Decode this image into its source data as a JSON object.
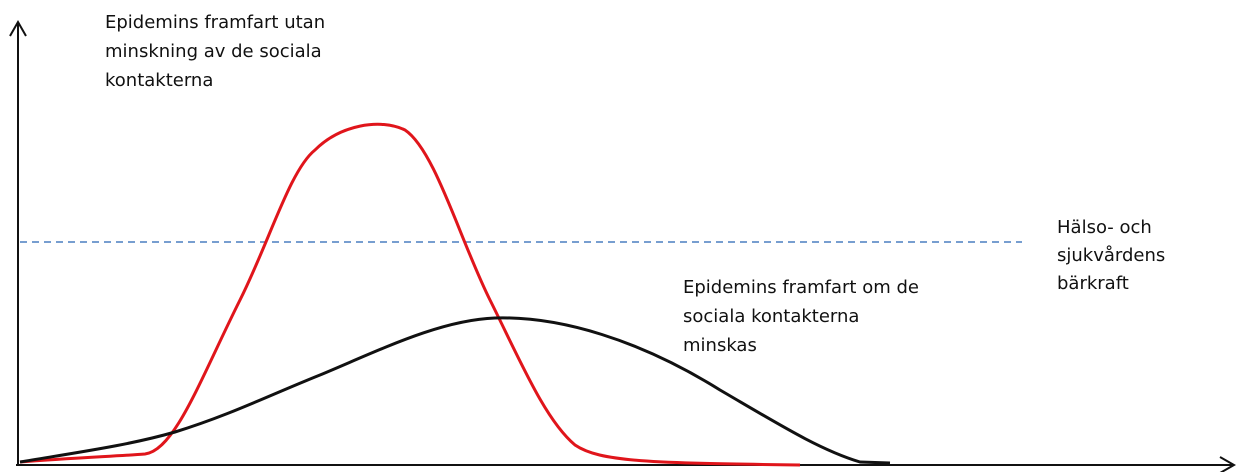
{
  "labels": {
    "unmitigated": [
      "Epidemins framfart utan",
      "minskning av de sociala",
      "kontakterna"
    ],
    "mitigated": [
      "Epidemins framfart om de",
      "sociala kontakterna",
      "minskas"
    ],
    "capacity": [
      "Hälso- och",
      "sjukvårdens",
      "bärkraft"
    ]
  }
}
